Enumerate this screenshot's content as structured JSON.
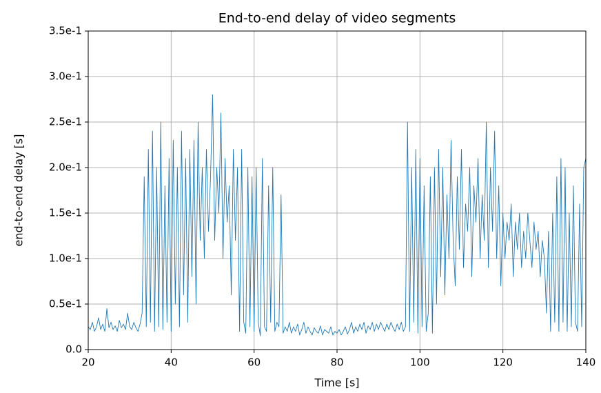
{
  "chart_data": {
    "type": "line",
    "title": "End-to-end delay of video segments",
    "xlabel": "Time [s]",
    "ylabel": "end-to-end delay [s]",
    "color": "#1f77b4",
    "grid": true,
    "xlim": [
      20,
      140
    ],
    "ylim": [
      0,
      0.35
    ],
    "xticks": [
      20,
      40,
      60,
      80,
      100,
      120,
      140
    ],
    "yticks": [
      {
        "value": 0,
        "label": "0.0"
      },
      {
        "value": 0.05,
        "label": "0.5e-1"
      },
      {
        "value": 0.1,
        "label": "1.0e-1"
      },
      {
        "value": 0.15,
        "label": "1.5e-1"
      },
      {
        "value": 0.2,
        "label": "2.0e-1"
      },
      {
        "value": 0.25,
        "label": "2.5e-1"
      },
      {
        "value": 0.3,
        "label": "3.0e-1"
      },
      {
        "value": 0.35,
        "label": "3.5e-1"
      }
    ],
    "x": [
      20,
      20.5,
      21,
      21.5,
      22,
      22.5,
      23,
      23.5,
      24,
      24.5,
      25,
      25.5,
      26,
      26.5,
      27,
      27.5,
      28,
      28.5,
      29,
      29.5,
      30,
      30.5,
      31,
      31.5,
      32,
      32.5,
      33,
      33.5,
      34,
      34.5,
      35,
      35.5,
      36,
      36.5,
      37,
      37.5,
      38,
      38.5,
      39,
      39.5,
      40,
      40.5,
      41,
      41.5,
      42,
      42.5,
      43,
      43.5,
      44,
      44.5,
      45,
      45.5,
      46,
      46.5,
      47,
      47.5,
      48,
      48.5,
      49,
      49.5,
      50,
      50.5,
      51,
      51.5,
      52,
      52.5,
      53,
      53.5,
      54,
      54.5,
      55,
      55.5,
      56,
      56.5,
      57,
      57.5,
      58,
      58.5,
      59,
      59.5,
      60,
      60.5,
      61,
      61.5,
      62,
      62.5,
      63,
      63.5,
      64,
      64.5,
      65,
      65.5,
      66,
      66.5,
      67,
      67.5,
      68,
      68.5,
      69,
      69.5,
      70,
      70.5,
      71,
      71.5,
      72,
      72.5,
      73,
      73.5,
      74,
      74.5,
      75,
      75.5,
      76,
      76.5,
      77,
      77.5,
      78,
      78.5,
      79,
      79.5,
      80,
      80.5,
      81,
      81.5,
      82,
      82.5,
      83,
      83.5,
      84,
      84.5,
      85,
      85.5,
      86,
      86.5,
      87,
      87.5,
      88,
      88.5,
      89,
      89.5,
      90,
      90.5,
      91,
      91.5,
      92,
      92.5,
      93,
      93.5,
      94,
      94.5,
      95,
      95.5,
      96,
      96.5,
      97,
      97.5,
      98,
      98.5,
      99,
      99.5,
      100,
      100.5,
      101,
      101.5,
      102,
      102.5,
      103,
      103.5,
      104,
      104.5,
      105,
      105.5,
      106,
      106.5,
      107,
      107.5,
      108,
      108.5,
      109,
      109.5,
      110,
      110.5,
      111,
      111.5,
      112,
      112.5,
      113,
      113.5,
      114,
      114.5,
      115,
      115.5,
      116,
      116.5,
      117,
      117.5,
      118,
      118.5,
      119,
      119.5,
      120,
      120.5,
      121,
      121.5,
      122,
      122.5,
      123,
      123.5,
      124,
      124.5,
      125,
      125.5,
      126,
      126.5,
      127,
      127.5,
      128,
      128.5,
      129,
      129.5,
      130,
      130.5,
      131,
      131.5,
      132,
      132.5,
      133,
      133.5,
      134,
      134.5,
      135,
      135.5,
      136,
      136.5,
      137,
      137.5,
      138,
      138.5,
      139,
      139.5,
      140
    ],
    "values": [
      0.025,
      0.022,
      0.03,
      0.02,
      0.025,
      0.035,
      0.022,
      0.028,
      0.02,
      0.045,
      0.024,
      0.03,
      0.022,
      0.026,
      0.02,
      0.032,
      0.024,
      0.028,
      0.022,
      0.04,
      0.025,
      0.022,
      0.03,
      0.024,
      0.02,
      0.028,
      0.04,
      0.19,
      0.025,
      0.22,
      0.03,
      0.24,
      0.02,
      0.2,
      0.025,
      0.25,
      0.022,
      0.18,
      0.03,
      0.21,
      0.02,
      0.23,
      0.05,
      0.2,
      0.025,
      0.24,
      0.06,
      0.21,
      0.03,
      0.22,
      0.08,
      0.23,
      0.05,
      0.25,
      0.12,
      0.2,
      0.1,
      0.22,
      0.13,
      0.19,
      0.28,
      0.12,
      0.2,
      0.15,
      0.26,
      0.1,
      0.21,
      0.14,
      0.18,
      0.06,
      0.22,
      0.12,
      0.2,
      0.02,
      0.22,
      0.03,
      0.018,
      0.2,
      0.025,
      0.19,
      0.02,
      0.2,
      0.03,
      0.015,
      0.21,
      0.025,
      0.02,
      0.18,
      0.03,
      0.2,
      0.02,
      0.03,
      0.025,
      0.17,
      0.018,
      0.025,
      0.02,
      0.03,
      0.018,
      0.025,
      0.02,
      0.028,
      0.016,
      0.022,
      0.03,
      0.018,
      0.025,
      0.02,
      0.016,
      0.024,
      0.02,
      0.018,
      0.026,
      0.016,
      0.022,
      0.02,
      0.018,
      0.025,
      0.016,
      0.02,
      0.018,
      0.022,
      0.016,
      0.02,
      0.025,
      0.017,
      0.022,
      0.03,
      0.018,
      0.025,
      0.02,
      0.028,
      0.022,
      0.03,
      0.018,
      0.026,
      0.022,
      0.03,
      0.02,
      0.028,
      0.022,
      0.03,
      0.025,
      0.02,
      0.028,
      0.022,
      0.03,
      0.024,
      0.02,
      0.028,
      0.022,
      0.03,
      0.02,
      0.025,
      0.25,
      0.02,
      0.2,
      0.03,
      0.22,
      0.018,
      0.21,
      0.025,
      0.18,
      0.02,
      0.04,
      0.19,
      0.018,
      0.2,
      0.05,
      0.22,
      0.08,
      0.2,
      0.06,
      0.17,
      0.1,
      0.23,
      0.12,
      0.07,
      0.19,
      0.11,
      0.22,
      0.09,
      0.16,
      0.13,
      0.2,
      0.08,
      0.18,
      0.14,
      0.21,
      0.1,
      0.17,
      0.12,
      0.25,
      0.09,
      0.2,
      0.13,
      0.24,
      0.1,
      0.18,
      0.07,
      0.15,
      0.1,
      0.14,
      0.12,
      0.16,
      0.08,
      0.14,
      0.11,
      0.15,
      0.09,
      0.13,
      0.1,
      0.15,
      0.12,
      0.09,
      0.14,
      0.11,
      0.13,
      0.08,
      0.12,
      0.1,
      0.04,
      0.13,
      0.02,
      0.15,
      0.03,
      0.19,
      0.02,
      0.21,
      0.03,
      0.2,
      0.02,
      0.15,
      0.025,
      0.18,
      0.03,
      0.02,
      0.16,
      0.025,
      0.2,
      0.21
    ]
  }
}
